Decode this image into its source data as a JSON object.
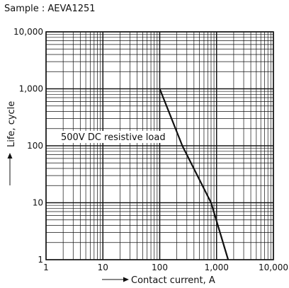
{
  "sample_label": "Sample : AEVA1251",
  "chart_data": {
    "type": "line",
    "x_scale": "log",
    "y_scale": "log",
    "xlim": [
      1,
      10000
    ],
    "ylim": [
      1,
      10000
    ],
    "xlabel": "Contact current, A",
    "ylabel": "Life, cycle",
    "x_ticks": [
      {
        "value": 1,
        "label": "1"
      },
      {
        "value": 10,
        "label": "10"
      },
      {
        "value": 100,
        "label": "100"
      },
      {
        "value": 1000,
        "label": "1,000"
      },
      {
        "value": 10000,
        "label": "10,000"
      }
    ],
    "y_ticks": [
      {
        "value": 1,
        "label": "1"
      },
      {
        "value": 10,
        "label": "10"
      },
      {
        "value": 100,
        "label": "100"
      },
      {
        "value": 1000,
        "label": "1,000"
      },
      {
        "value": 10000,
        "label": "10,000"
      }
    ],
    "grid": true,
    "series": [
      {
        "name": "500V DC resistive load",
        "x": [
          100,
          250,
          800,
          1600
        ],
        "y": [
          1000,
          100,
          10,
          1
        ]
      }
    ],
    "annotations": [
      {
        "text": "500V DC resistive load"
      }
    ]
  }
}
